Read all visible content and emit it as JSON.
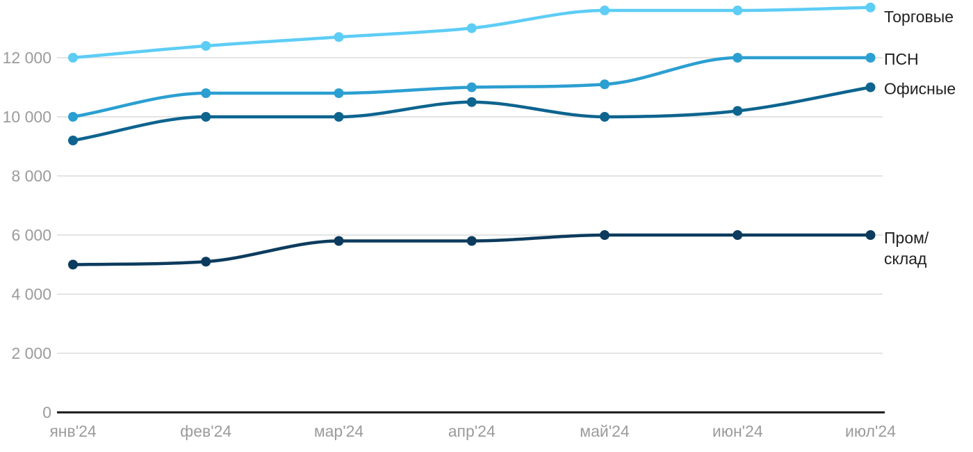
{
  "chart_data": {
    "type": "line",
    "title": "",
    "x": [
      "янв'24",
      "фев'24",
      "мар'24",
      "апр'24",
      "май'24",
      "июн'24",
      "июл'24"
    ],
    "series": [
      {
        "name": "Торговые",
        "color": "#5dcdf5",
        "values": [
          12000,
          12400,
          12700,
          13000,
          13600,
          13600,
          13700
        ]
      },
      {
        "name": "ПСН",
        "color": "#2b9fd1",
        "values": [
          10000,
          10800,
          10800,
          11000,
          11100,
          12000,
          12000
        ]
      },
      {
        "name": "Офисные",
        "color": "#0d648f",
        "values": [
          9200,
          10000,
          10000,
          10500,
          10000,
          10200,
          11000
        ]
      },
      {
        "name": "Пром/склад",
        "color": "#0c3b5d",
        "label_lines": [
          "Пром/",
          "склад"
        ],
        "values": [
          5000,
          5100,
          5800,
          5800,
          6000,
          6000,
          6000
        ]
      }
    ],
    "y_axis": {
      "min": 0,
      "max": 13950,
      "ticks": [
        0,
        2000,
        4000,
        6000,
        8000,
        10000,
        12000
      ],
      "tick_labels": [
        "0",
        "2 000",
        "4 000",
        "6 000",
        "8 000",
        "10 000",
        "12 000"
      ]
    },
    "grid": true,
    "legend_position": "right-of-line-end",
    "line_smoothing": "monotone",
    "colors": {
      "grid": "#e4e4e4",
      "axis": "#161616",
      "tick_text": "#9b9b9b",
      "label_text": "#1f1f1f",
      "background": "#ffffff"
    }
  }
}
